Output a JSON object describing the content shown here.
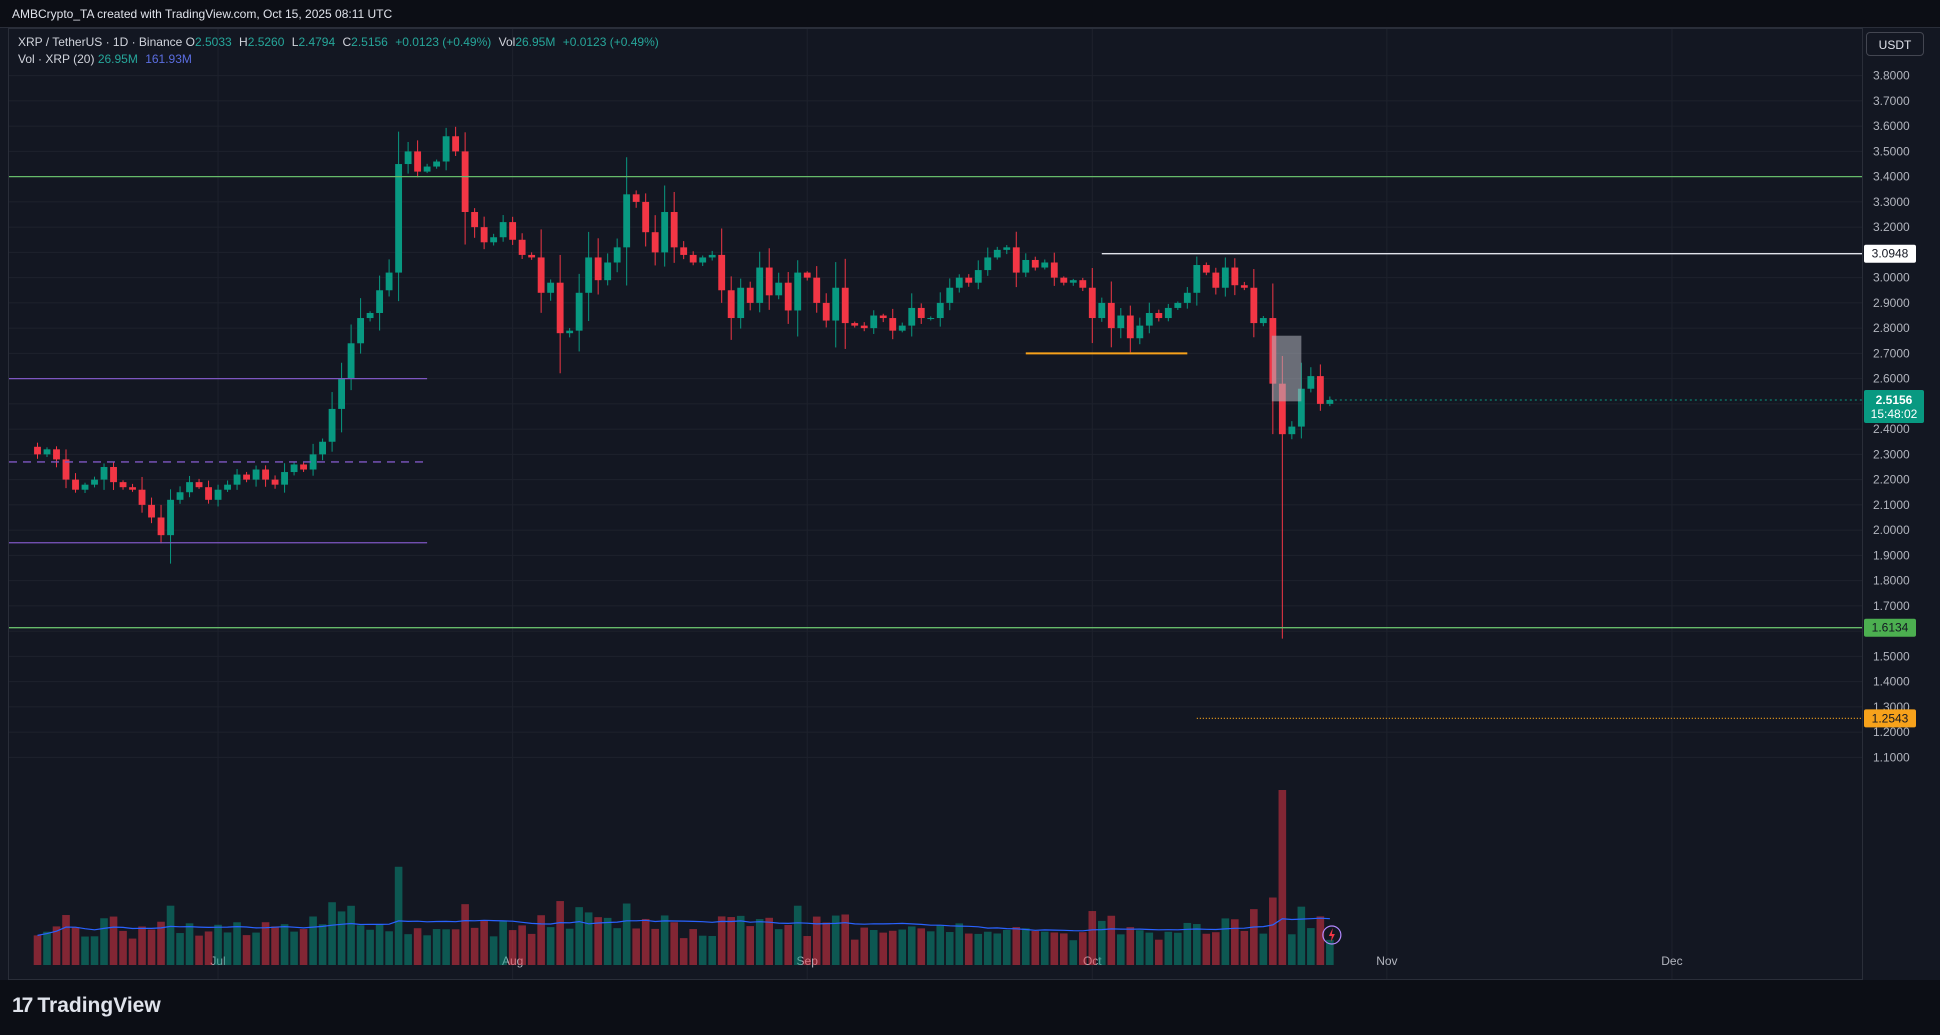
{
  "header": {
    "attribution": "AMBCrypto_TA created with TradingView.com, Oct 15, 2025 08:11 UTC"
  },
  "legend": {
    "symbol": "XRP / TetherUS · 1D · Binance",
    "o_label": "O",
    "o_value": "2.5033",
    "h_label": "H",
    "h_value": "2.5260",
    "l_label": "L",
    "l_value": "2.4794",
    "c_label": "C",
    "c_value": "2.5156",
    "change": "+0.0123 (+0.49%)",
    "vol_label": "Vol",
    "vol_value": "26.95M",
    "vol_change": "+0.0123 (+0.49%)",
    "vol_ma_label": "Vol · XRP (20)",
    "vol_ma_value1": "26.95M",
    "vol_ma_value2": "161.93M"
  },
  "currency_button": "USDT",
  "brand": {
    "logo": "17",
    "name": "TradingView"
  },
  "chart_data": {
    "type": "candlestick",
    "symbol": "XRP / TetherUS",
    "interval": "1D",
    "exchange": "Binance",
    "y_range": [
      1.03,
      3.87
    ],
    "y_ticks": [
      "3.8000",
      "3.7000",
      "3.6000",
      "3.5000",
      "3.4000",
      "3.3000",
      "3.2000",
      "3.1000",
      "3.0000",
      "2.9000",
      "2.8000",
      "2.7000",
      "2.6000",
      "2.5000",
      "2.4000",
      "2.3000",
      "2.2000",
      "2.1000",
      "2.0000",
      "1.9000",
      "1.8000",
      "1.7000",
      "1.6000",
      "1.5000",
      "1.4000",
      "1.3000",
      "1.2000",
      "1.1000"
    ],
    "x_labels": [
      {
        "label": "Jul",
        "date": "2025-07-01"
      },
      {
        "label": "Aug",
        "date": "2025-08-01"
      },
      {
        "label": "Sep",
        "date": "2025-09-01"
      },
      {
        "label": "Oct",
        "date": "2025-10-01"
      },
      {
        "label": "Nov",
        "date": "2025-11-01"
      },
      {
        "label": "Dec",
        "date": "2025-12-01"
      }
    ],
    "x_range": [
      "2025-06-09",
      "2025-12-21"
    ],
    "closes": [
      2.3,
      2.32,
      2.28,
      2.2,
      2.16,
      2.18,
      2.2,
      2.25,
      2.19,
      2.17,
      2.16,
      2.1,
      2.05,
      1.98,
      2.12,
      2.15,
      2.19,
      2.17,
      2.12,
      2.16,
      2.18,
      2.22,
      2.2,
      2.24,
      2.2,
      2.18,
      2.23,
      2.26,
      2.24,
      2.3,
      2.35,
      2.48,
      2.6,
      2.74,
      2.84,
      2.86,
      2.95,
      3.02,
      3.45,
      3.5,
      3.42,
      3.44,
      3.46,
      3.56,
      3.5,
      3.26,
      3.2,
      3.14,
      3.16,
      3.22,
      3.15,
      3.09,
      3.08,
      2.94,
      2.98,
      2.78,
      2.79,
      2.94,
      3.08,
      2.99,
      3.06,
      3.12,
      3.33,
      3.3,
      3.18,
      3.1,
      3.26,
      3.12,
      3.09,
      3.06,
      3.08,
      3.09,
      2.95,
      2.84,
      2.96,
      2.9,
      3.04,
      2.93,
      2.98,
      2.87,
      3.02,
      3.0,
      2.9,
      2.83,
      2.96,
      2.82,
      2.81,
      2.8,
      2.85,
      2.84,
      2.79,
      2.81,
      2.88,
      2.84,
      2.84,
      2.9,
      2.96,
      3.0,
      2.98,
      3.03,
      3.08,
      3.11,
      3.12,
      3.02,
      3.07,
      3.04,
      3.06,
      3.0,
      2.98,
      2.99,
      2.96,
      2.84,
      2.9,
      2.8,
      2.85,
      2.76,
      2.81,
      2.86,
      2.84,
      2.88,
      2.9,
      2.94,
      3.05,
      3.02,
      2.96,
      3.04,
      2.97,
      2.96,
      2.82,
      2.84,
      2.58,
      2.38,
      2.41,
      2.56,
      2.61,
      2.5,
      2.5156
    ],
    "horizontal_levels": [
      {
        "price": 3.4,
        "label": "",
        "color": "#66bb6a",
        "style": "solid"
      },
      {
        "price": 3.0948,
        "label": "3.0948",
        "color": "#e0e3eb",
        "style": "solid"
      },
      {
        "price": 2.6,
        "label": "",
        "color": "#7e57c2",
        "style": "solid"
      },
      {
        "price": 2.27,
        "label": "",
        "color": "#7e57c2",
        "style": "dashed"
      },
      {
        "price": 1.95,
        "label": "",
        "color": "#7e57c2",
        "style": "solid"
      },
      {
        "price": 1.6134,
        "label": "1.6134",
        "color": "#66bb6a",
        "style": "solid"
      },
      {
        "price": 2.7,
        "label": "",
        "color": "#f7a21b",
        "style": "solid"
      },
      {
        "price": 1.2543,
        "label": "1.2543",
        "color": "#f7a21b",
        "style": "dotted"
      }
    ],
    "zone": {
      "price_top": 2.77,
      "price_bottom": 2.51,
      "color": "#b2b5be"
    },
    "last_price": {
      "value": "2.5156",
      "countdown": "15:48:02",
      "color": "#089981"
    },
    "volume_series": {
      "name": "Vol · XRP (20)",
      "last": "26.95M",
      "ma_last": "161.93M"
    },
    "grid": true
  }
}
